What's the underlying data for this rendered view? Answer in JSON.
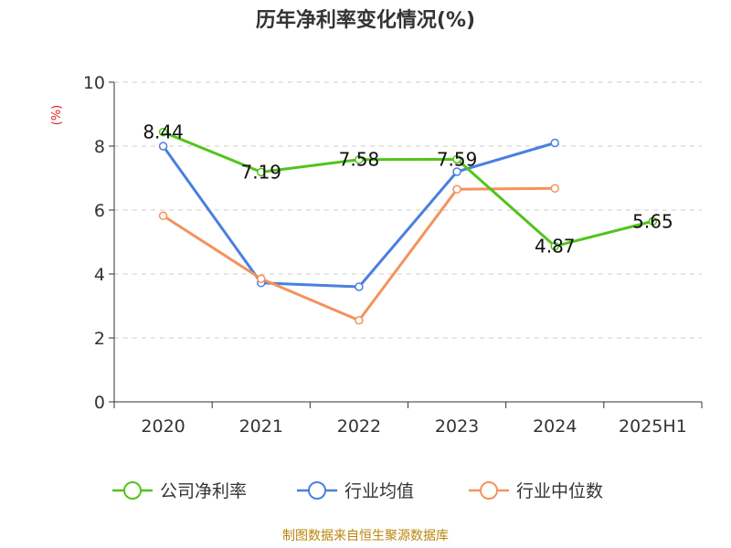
{
  "chart_data": {
    "type": "line",
    "title": "历年净利率变化情况(%)",
    "ylabel": "(%)",
    "xlabel": "",
    "categories": [
      "2020",
      "2021",
      "2022",
      "2023",
      "2024",
      "2025H1"
    ],
    "ylim": [
      0,
      10
    ],
    "yticks": [
      "0",
      "2",
      "4",
      "6",
      "8",
      "10"
    ],
    "grid": true,
    "legend_position": "bottom",
    "series": [
      {
        "name": "公司净利率",
        "color": "#52c41a",
        "values": [
          8.44,
          7.19,
          7.58,
          7.59,
          4.87,
          5.65
        ],
        "labels": [
          "8.44",
          "7.19",
          "7.58",
          "7.59",
          "4.87",
          "5.65"
        ]
      },
      {
        "name": "行业均值",
        "color": "#4a7fe0",
        "values": [
          8.0,
          3.72,
          3.6,
          7.2,
          8.1,
          null
        ]
      },
      {
        "name": "行业中位数",
        "color": "#f4925d",
        "values": [
          5.82,
          3.85,
          2.55,
          6.65,
          6.68,
          null
        ]
      }
    ]
  },
  "source": "制图数据来自恒生聚源数据库",
  "colors": {
    "axis": "#333333",
    "grid": "#cccccc",
    "ylabel": "#e02020",
    "source": "#b8860b"
  }
}
